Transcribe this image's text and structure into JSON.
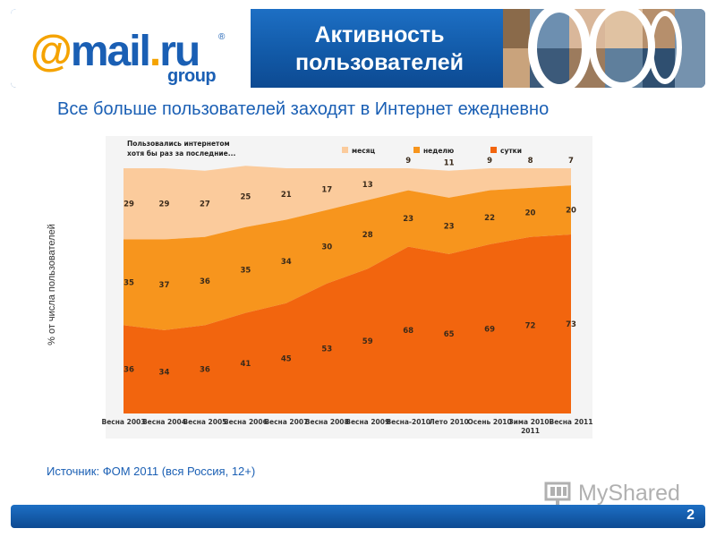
{
  "header": {
    "logo": {
      "at": "@",
      "mail": "mail",
      "dot": ".",
      "ru": "ru",
      "reg": "®",
      "group": "group"
    },
    "title_line1": "Активность",
    "title_line2": "пользователей"
  },
  "slide_title": "Все больше пользователей заходят в Интернет ежедневно",
  "source": "Источник: ФОМ 2011 (вся Россия, 12+)",
  "page_number": "2",
  "watermark": {
    "icon": "tree-icon",
    "text": "MyShared"
  },
  "colors": {
    "brand_blue": "#1a5fb4",
    "accent_orange": "#f5a300",
    "month": "#fbcb9c",
    "week": "#f7951d",
    "day": "#f2650e"
  },
  "chart_data": {
    "type": "area",
    "stacked": true,
    "ylabel": "% от числа пользователей",
    "legend_title": "Пользовались интернетом хотя бы раз за последние...",
    "legend_position": "top",
    "ylim": [
      0,
      100
    ],
    "grid": false,
    "categories": [
      "Весна 2003",
      "Весна 2004",
      "Весна 2005",
      "Весна 2006",
      "Весна 2007",
      "Весна 2008",
      "Весна 2009",
      "Весна-2010",
      "Лето 2010",
      "Осень 2010",
      "Зима 2010-2011",
      "Весна 2011"
    ],
    "series": [
      {
        "name": "сутки",
        "color": "#f2650e",
        "values": [
          36,
          34,
          36,
          41,
          45,
          53,
          59,
          68,
          65,
          69,
          72,
          73
        ]
      },
      {
        "name": "неделю",
        "color": "#f7951d",
        "values": [
          35,
          37,
          36,
          35,
          34,
          30,
          28,
          23,
          23,
          22,
          20,
          20
        ]
      },
      {
        "name": "месяц",
        "color": "#fbcb9c",
        "values": [
          29,
          29,
          27,
          25,
          21,
          17,
          13,
          9,
          11,
          9,
          8,
          7
        ]
      }
    ],
    "legend_order": [
      "месяц",
      "неделю",
      "сутки"
    ]
  }
}
